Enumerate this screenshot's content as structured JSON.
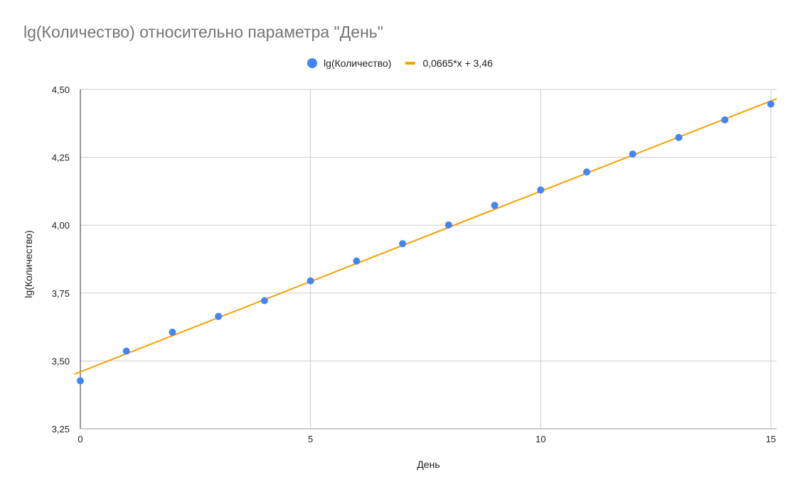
{
  "colors": {
    "points": "#4285f4",
    "trend": "#f4a100",
    "grid": "#cccccc",
    "axis": "#333333",
    "title": "#757575"
  },
  "chart_data": {
    "type": "scatter",
    "title": "lg(Количество) относительно параметра \"День\"",
    "xlabel": "День",
    "ylabel": "lg(Количество)",
    "xlim": [
      0,
      15
    ],
    "ylim": [
      3.25,
      4.5
    ],
    "x_ticks": [
      0,
      5,
      10,
      15
    ],
    "x_tick_labels": [
      "0",
      "5",
      "10",
      "15"
    ],
    "y_ticks": [
      3.25,
      3.5,
      3.75,
      4.0,
      4.25,
      4.5
    ],
    "y_tick_labels": [
      "3,25",
      "3,50",
      "3,75",
      "4,00",
      "4,25",
      "4,50"
    ],
    "grid": true,
    "legend_position": "top-center",
    "series": [
      {
        "name": "lg(Количество)",
        "type": "scatter",
        "x": [
          0,
          1,
          2,
          3,
          4,
          5,
          6,
          7,
          8,
          9,
          10,
          11,
          12,
          13,
          14,
          15
        ],
        "y": [
          3.427,
          3.536,
          3.606,
          3.664,
          3.722,
          3.795,
          3.868,
          3.932,
          4.001,
          4.073,
          4.13,
          4.196,
          4.262,
          4.323,
          4.388,
          4.446
        ]
      }
    ],
    "trendline": {
      "name": "0,0665*x + 3,46",
      "slope": 0.0665,
      "intercept": 3.46
    }
  }
}
